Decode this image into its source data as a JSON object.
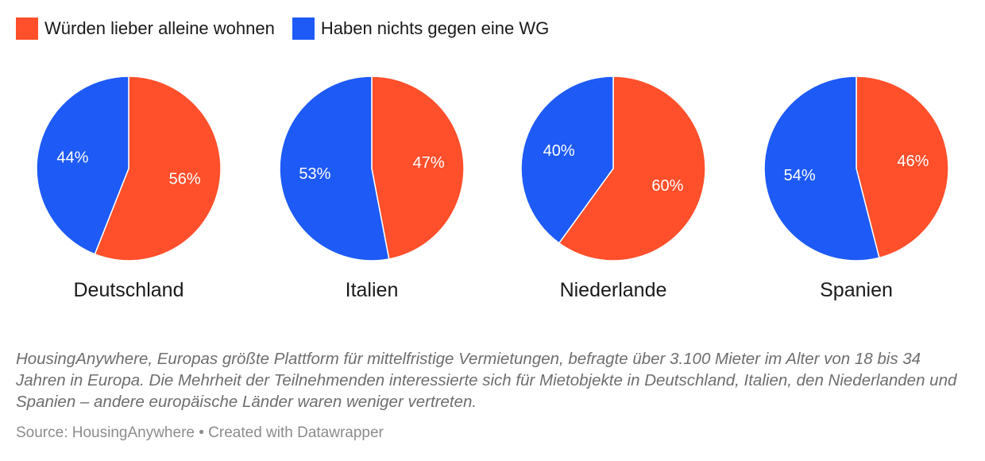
{
  "legend": [
    {
      "label": "Würden lieber alleine wohnen",
      "color": "#ff4f2b"
    },
    {
      "label": "Haben nichts gegen eine WG",
      "color": "#1e5af5"
    }
  ],
  "chart_data": {
    "type": "pie",
    "series_names": [
      "Würden lieber alleine wohnen",
      "Haben nichts gegen eine WG"
    ],
    "colors": [
      "#ff4f2b",
      "#1e5af5"
    ],
    "charts": [
      {
        "title": "Deutschland",
        "values": [
          56,
          44
        ],
        "labels": [
          "56%",
          "44%"
        ]
      },
      {
        "title": "Italien",
        "values": [
          47,
          53
        ],
        "labels": [
          "47%",
          "53%"
        ]
      },
      {
        "title": "Niederlande",
        "values": [
          60,
          40
        ],
        "labels": [
          "60%",
          "40%"
        ]
      },
      {
        "title": "Spanien",
        "values": [
          46,
          54
        ],
        "labels": [
          "46%",
          "54%"
        ]
      }
    ]
  },
  "note": "HousingAnywhere, Europas größte Plattform für mittelfristige Vermietungen, befragte über 3.100 Mieter im Alter von 18 bis 34 Jahren in Europa. Die Mehrheit der Teilnehmenden interessierte sich für Mietobjekte in Deutschland, Italien, den Niederlanden und Spanien – andere europäische Länder waren weniger vertreten.",
  "source": "Source: HousingAnywhere • Created with Datawrapper"
}
